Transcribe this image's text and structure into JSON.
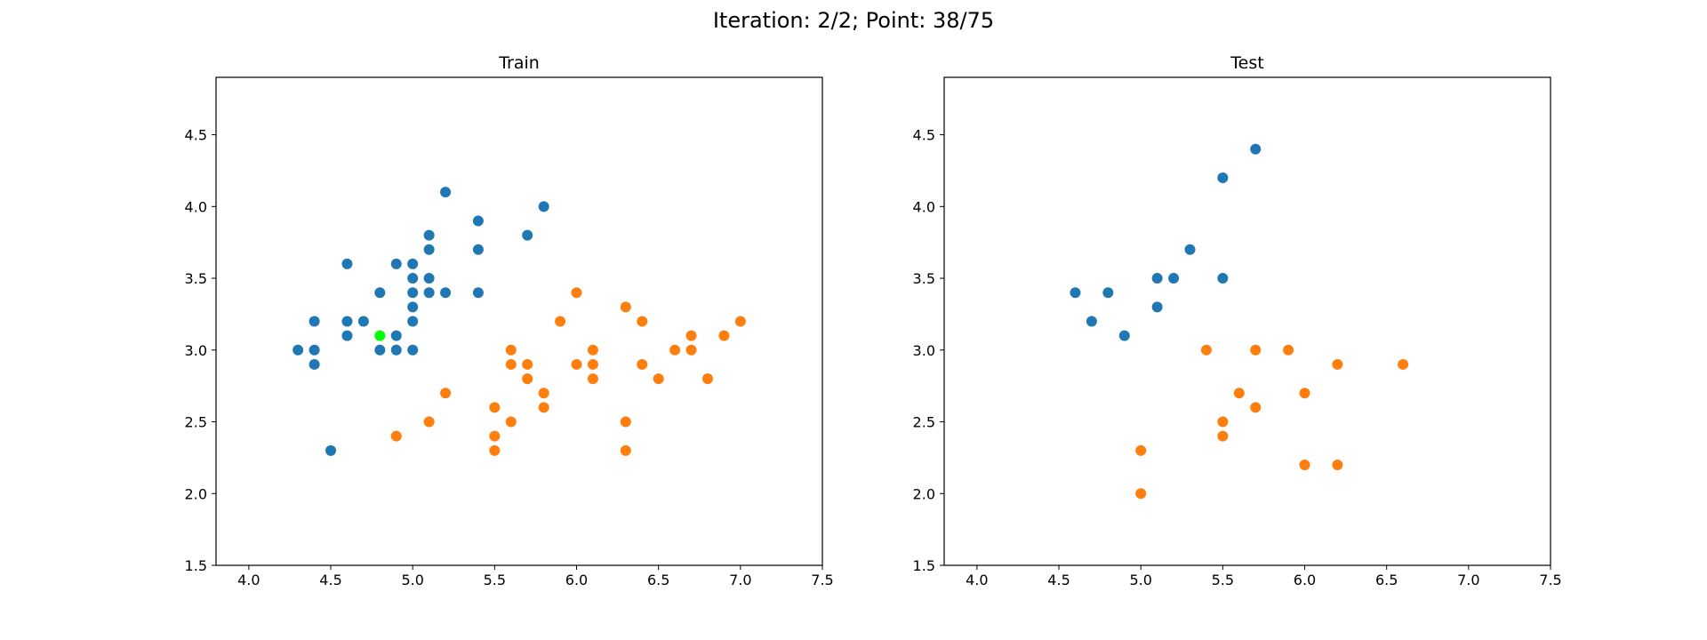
{
  "figure": {
    "title": "Iteration: 2/2; Point: 38/75"
  },
  "colors": {
    "class0": "#1f77b4",
    "class1": "#ff7f0e",
    "highlight": "#00ff00",
    "axis": "#000000"
  },
  "chart_data": [
    {
      "type": "scatter",
      "title": "Train",
      "xlabel": "",
      "ylabel": "",
      "xlim": [
        3.8,
        7.5
      ],
      "ylim": [
        1.5,
        4.9
      ],
      "xticks": [
        "4.0",
        "4.5",
        "5.0",
        "5.5",
        "6.0",
        "6.5",
        "7.0",
        "7.5"
      ],
      "yticks": [
        "1.5",
        "2.0",
        "2.5",
        "3.0",
        "3.5",
        "4.0",
        "4.5"
      ],
      "grid": false,
      "series": [
        {
          "color": "#1f77b4",
          "points": [
            [
              5.2,
              4.1
            ],
            [
              5.8,
              4.0
            ],
            [
              5.4,
              3.9
            ],
            [
              5.1,
              3.8
            ],
            [
              5.7,
              3.8
            ],
            [
              5.1,
              3.7
            ],
            [
              5.4,
              3.7
            ],
            [
              4.6,
              3.6
            ],
            [
              4.9,
              3.6
            ],
            [
              5.0,
              3.6
            ],
            [
              5.0,
              3.5
            ],
            [
              5.1,
              3.5
            ],
            [
              4.8,
              3.4
            ],
            [
              5.0,
              3.4
            ],
            [
              5.1,
              3.4
            ],
            [
              5.2,
              3.4
            ],
            [
              5.4,
              3.4
            ],
            [
              5.0,
              3.3
            ],
            [
              4.4,
              3.2
            ],
            [
              4.6,
              3.2
            ],
            [
              4.7,
              3.2
            ],
            [
              5.0,
              3.2
            ],
            [
              4.6,
              3.1
            ],
            [
              4.9,
              3.1
            ],
            [
              4.3,
              3.0
            ],
            [
              4.4,
              3.0
            ],
            [
              4.8,
              3.0
            ],
            [
              4.9,
              3.0
            ],
            [
              5.0,
              3.0
            ],
            [
              4.4,
              2.9
            ],
            [
              4.5,
              2.3
            ]
          ]
        },
        {
          "color": "#ff7f0e",
          "points": [
            [
              6.0,
              3.4
            ],
            [
              6.3,
              3.3
            ],
            [
              5.9,
              3.2
            ],
            [
              6.4,
              3.2
            ],
            [
              7.0,
              3.2
            ],
            [
              6.7,
              3.1
            ],
            [
              6.9,
              3.1
            ],
            [
              5.6,
              3.0
            ],
            [
              6.1,
              3.0
            ],
            [
              6.6,
              3.0
            ],
            [
              6.7,
              3.0
            ],
            [
              5.6,
              2.9
            ],
            [
              5.7,
              2.9
            ],
            [
              6.0,
              2.9
            ],
            [
              6.1,
              2.9
            ],
            [
              6.4,
              2.9
            ],
            [
              5.7,
              2.8
            ],
            [
              6.1,
              2.8
            ],
            [
              6.5,
              2.8
            ],
            [
              6.8,
              2.8
            ],
            [
              5.2,
              2.7
            ],
            [
              5.8,
              2.7
            ],
            [
              5.5,
              2.6
            ],
            [
              5.8,
              2.6
            ],
            [
              5.1,
              2.5
            ],
            [
              5.6,
              2.5
            ],
            [
              6.3,
              2.5
            ],
            [
              4.9,
              2.4
            ],
            [
              5.5,
              2.4
            ],
            [
              5.5,
              2.3
            ],
            [
              6.3,
              2.3
            ]
          ]
        },
        {
          "color": "#00ff00",
          "points": [
            [
              4.8,
              3.1
            ]
          ]
        }
      ]
    },
    {
      "type": "scatter",
      "title": "Test",
      "xlabel": "",
      "ylabel": "",
      "xlim": [
        3.8,
        7.5
      ],
      "ylim": [
        1.5,
        4.9
      ],
      "xticks": [
        "4.0",
        "4.5",
        "5.0",
        "5.5",
        "6.0",
        "6.5",
        "7.0",
        "7.5"
      ],
      "yticks": [
        "1.5",
        "2.0",
        "2.5",
        "3.0",
        "3.5",
        "4.0",
        "4.5"
      ],
      "grid": false,
      "series": [
        {
          "color": "#1f77b4",
          "points": [
            [
              5.7,
              4.4
            ],
            [
              5.5,
              4.2
            ],
            [
              5.3,
              3.7
            ],
            [
              5.1,
              3.5
            ],
            [
              5.2,
              3.5
            ],
            [
              5.5,
              3.5
            ],
            [
              4.6,
              3.4
            ],
            [
              4.8,
              3.4
            ],
            [
              5.1,
              3.3
            ],
            [
              4.7,
              3.2
            ],
            [
              4.9,
              3.1
            ]
          ]
        },
        {
          "color": "#ff7f0e",
          "points": [
            [
              5.4,
              3.0
            ],
            [
              5.7,
              3.0
            ],
            [
              5.9,
              3.0
            ],
            [
              6.2,
              2.9
            ],
            [
              6.6,
              2.9
            ],
            [
              5.6,
              2.7
            ],
            [
              6.0,
              2.7
            ],
            [
              5.7,
              2.6
            ],
            [
              5.5,
              2.5
            ],
            [
              5.5,
              2.4
            ],
            [
              5.0,
              2.3
            ],
            [
              6.0,
              2.2
            ],
            [
              6.2,
              2.2
            ],
            [
              5.0,
              2.0
            ]
          ]
        }
      ]
    }
  ]
}
